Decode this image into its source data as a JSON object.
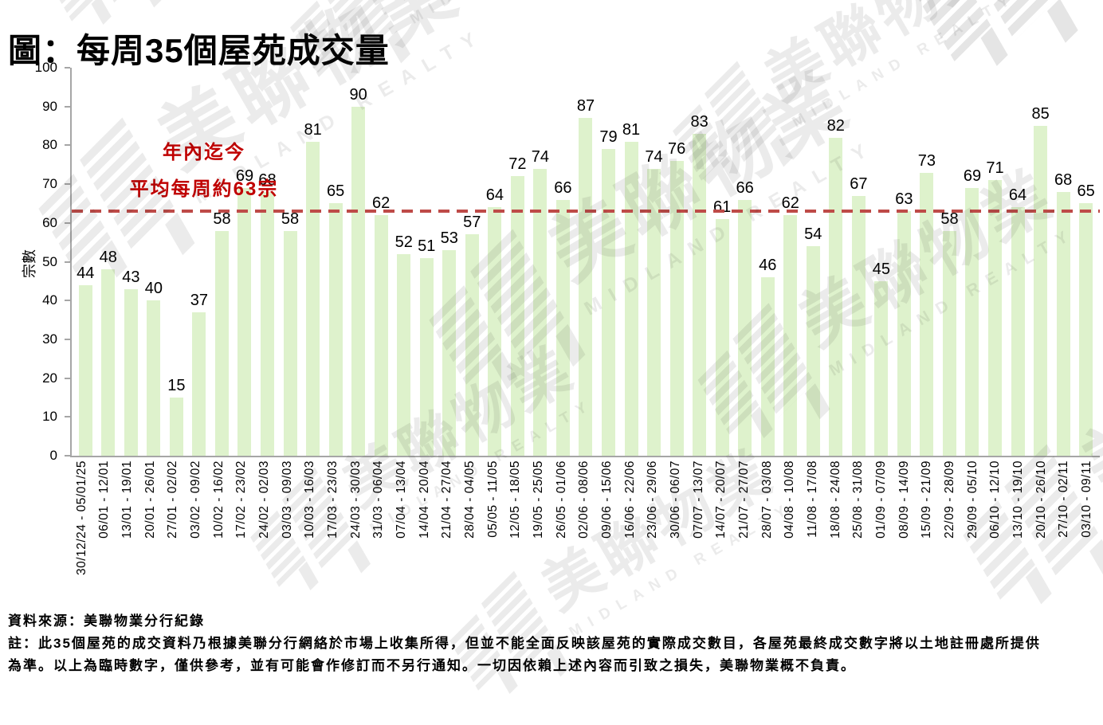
{
  "title": "圖：每周35個屋苑成交量",
  "watermark": {
    "cjk": "美聯物業",
    "latin": "MIDLAND REALTY"
  },
  "chart_data": {
    "type": "bar",
    "title": "每周35個屋苑成交量",
    "xlabel": "",
    "ylabel": "宗數",
    "ylim": [
      0,
      100
    ],
    "yticks": [
      0,
      10,
      20,
      30,
      40,
      50,
      60,
      70,
      80,
      90,
      100
    ],
    "grid": false,
    "legend": false,
    "bar_color": "#def2cc",
    "categories": [
      "30/12/24 - 05/01/25",
      "06/01 - 12/01",
      "13/01 - 19/01",
      "20/01 - 26/01",
      "27/01 - 02/02",
      "03/02 - 09/02",
      "10/02 - 16/02",
      "17/02 - 23/02",
      "24/02 - 02/03",
      "03/03 - 09/03",
      "10/03 - 16/03",
      "17/03 - 23/03",
      "24/03 - 30/03",
      "31/03 - 06/04",
      "07/04 - 13/04",
      "14/04 - 20/04",
      "21/04 - 27/04",
      "28/04 - 04/05",
      "05/05 - 11/05",
      "12/05 - 18/05",
      "19/05 - 25/05",
      "26/05 - 01/06",
      "02/06 - 08/06",
      "09/06 - 15/06",
      "16/06 - 22/06",
      "23/06 - 29/06",
      "30/06 - 06/07",
      "07/07 - 13/07",
      "14/07 - 20/07",
      "21/07 - 27/07",
      "28/07 - 03/08",
      "04/08 - 10/08",
      "11/08 - 17/08",
      "18/08 - 24/08",
      "25/08 - 31/08",
      "01/09 - 07/09",
      "08/09 - 14/09",
      "15/09 - 21/09",
      "22/09 - 28/09",
      "29/09 - 05/10",
      "06/10 - 12/10",
      "13/10 - 19/10",
      "20/10 - 26/10",
      "27/10 - 02/11",
      "03/10 - 09/11"
    ],
    "values": [
      44,
      48,
      43,
      40,
      15,
      37,
      58,
      69,
      68,
      58,
      81,
      65,
      90,
      62,
      52,
      51,
      53,
      57,
      64,
      72,
      74,
      66,
      87,
      79,
      81,
      74,
      76,
      83,
      61,
      66,
      46,
      62,
      54,
      82,
      67,
      45,
      63,
      73,
      58,
      69,
      71,
      64,
      85,
      68,
      65
    ],
    "average_line": {
      "value": 63,
      "color": "#be4b48",
      "label_line1": "年內迄今",
      "label_line2": "平均每周約63宗",
      "label_color": "#c00000"
    }
  },
  "footer": {
    "source": "資料來源：美聯物業分行紀錄",
    "note_line1": "註：此35個屋苑的成交資料乃根據美聯分行網絡於市場上收集所得，但並不能全面反映該屋苑的實際成交數目，各屋苑最終成交數字將以土地註冊處所提供",
    "note_line2": "為準。以上為臨時數字，僅供參考，並有可能會作修訂而不另行通知。一切因依賴上述內容而引致之損失，美聯物業概不負責。"
  }
}
